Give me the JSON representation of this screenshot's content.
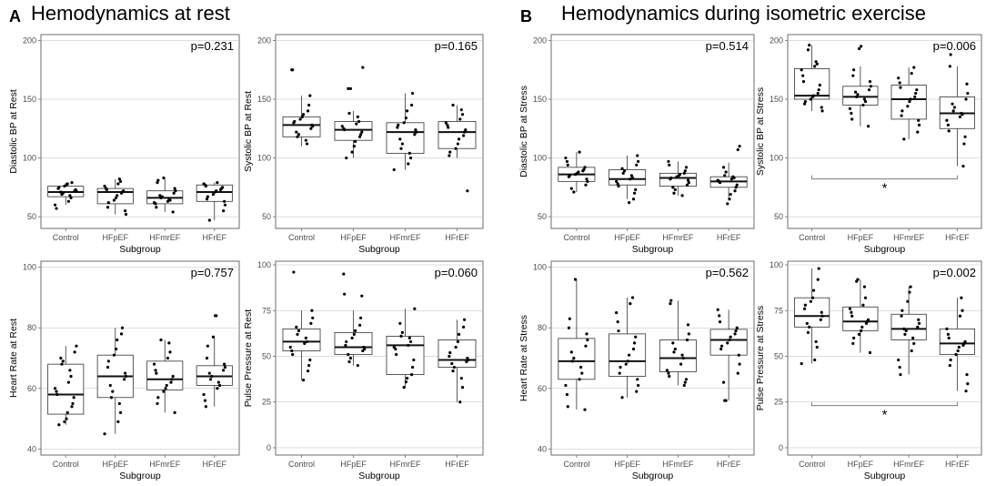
{
  "figure": {
    "panel_a": {
      "letter": "A",
      "title": "Hemodynamics at rest"
    },
    "panel_b": {
      "letter": "B",
      "title": "Hemodynamics during isometric exercise"
    }
  },
  "chart_data": [
    {
      "id": "dbp_rest",
      "type": "boxplot",
      "ylabel": "Diastolic BP at Rest",
      "xlabel": "Subgroup",
      "categories": [
        "Control",
        "HFpEF",
        "HFmrEF",
        "HFrEF"
      ],
      "ylim": [
        40,
        205
      ],
      "yticks": [
        50,
        100,
        150,
        200
      ],
      "pvalue": "p=0.231",
      "boxes": [
        {
          "q1": 67,
          "median": 71,
          "q3": 76,
          "lo": 60,
          "hi": 79
        },
        {
          "q1": 61,
          "median": 71,
          "q3": 74,
          "lo": 52,
          "hi": 82
        },
        {
          "q1": 61,
          "median": 66,
          "q3": 72,
          "lo": 54,
          "hi": 83
        },
        {
          "q1": 63,
          "median": 71,
          "q3": 77,
          "lo": 47,
          "hi": 79
        }
      ],
      "points": [
        [
          57,
          60,
          63,
          66,
          68,
          69,
          70,
          71,
          72,
          72,
          73,
          74,
          75,
          76,
          77,
          78,
          79
        ],
        [
          52,
          55,
          58,
          62,
          64,
          66,
          68,
          70,
          71,
          72,
          73,
          74,
          76,
          78,
          80,
          82
        ],
        [
          54,
          58,
          61,
          62,
          63,
          64,
          65,
          66,
          67,
          68,
          70,
          72,
          74,
          79,
          81,
          83
        ],
        [
          47,
          55,
          60,
          63,
          65,
          67,
          69,
          71,
          72,
          73,
          74,
          75,
          76,
          77,
          78,
          79
        ]
      ]
    },
    {
      "id": "sbp_rest",
      "type": "boxplot",
      "ylabel": "Systolic BP at Rest",
      "xlabel": "Subgroup",
      "categories": [
        "Control",
        "HFpEF",
        "HFmrEF",
        "HFrEF"
      ],
      "ylim": [
        40,
        205
      ],
      "yticks": [
        50,
        100,
        150,
        200
      ],
      "pvalue": "p=0.165",
      "boxes": [
        {
          "q1": 118,
          "median": 128,
          "q3": 135,
          "lo": 110,
          "hi": 153
        },
        {
          "q1": 115,
          "median": 124,
          "q3": 131,
          "lo": 100,
          "hi": 140
        },
        {
          "q1": 104,
          "median": 122,
          "q3": 130,
          "lo": 90,
          "hi": 155
        },
        {
          "q1": 108,
          "median": 122,
          "q3": 131,
          "lo": 100,
          "hi": 145
        }
      ],
      "points": [
        [
          112,
          115,
          118,
          120,
          122,
          125,
          127,
          128,
          130,
          131,
          133,
          135,
          137,
          140,
          145,
          153,
          175,
          175
        ],
        [
          100,
          105,
          110,
          114,
          118,
          120,
          122,
          124,
          125,
          127,
          129,
          131,
          135,
          138,
          159,
          159,
          177
        ],
        [
          90,
          95,
          100,
          104,
          108,
          112,
          116,
          120,
          122,
          124,
          126,
          128,
          130,
          134,
          140,
          145,
          155
        ],
        [
          72,
          102,
          105,
          108,
          112,
          116,
          119,
          122,
          124,
          126,
          128,
          130,
          133,
          137,
          141,
          145
        ]
      ]
    },
    {
      "id": "dbp_stress",
      "type": "boxplot",
      "ylabel": "Diastolic BP at Stress",
      "xlabel": "Subgroup",
      "categories": [
        "Control",
        "HFpEF",
        "HFmrEF",
        "HFrEF"
      ],
      "ylim": [
        40,
        205
      ],
      "yticks": [
        50,
        100,
        150,
        200
      ],
      "pvalue": "p=0.514",
      "boxes": [
        {
          "q1": 80,
          "median": 86,
          "q3": 92,
          "lo": 71,
          "hi": 105
        },
        {
          "q1": 77,
          "median": 82,
          "q3": 90,
          "lo": 65,
          "hi": 102
        },
        {
          "q1": 76,
          "median": 83,
          "q3": 87,
          "lo": 68,
          "hi": 97
        },
        {
          "q1": 75,
          "median": 80,
          "q3": 84,
          "lo": 65,
          "hi": 96
        }
      ],
      "points": [
        [
          71,
          74,
          77,
          80,
          82,
          84,
          85,
          86,
          87,
          88,
          89,
          90,
          92,
          94,
          97,
          100,
          105
        ],
        [
          62,
          65,
          70,
          73,
          76,
          78,
          80,
          82,
          83,
          85,
          87,
          89,
          91,
          94,
          97,
          102
        ],
        [
          68,
          70,
          73,
          75,
          77,
          79,
          81,
          82,
          83,
          84,
          85,
          86,
          87,
          89,
          92,
          94,
          97
        ],
        [
          61,
          65,
          69,
          72,
          75,
          77,
          79,
          80,
          81,
          82,
          83,
          84,
          85,
          88,
          92,
          107,
          110
        ]
      ]
    },
    {
      "id": "sbp_stress",
      "type": "boxplot",
      "ylabel": "Systolic BP at Stress",
      "xlabel": "Subgroup",
      "categories": [
        "Control",
        "HFpEF",
        "HFmrEF",
        "HFrEF"
      ],
      "ylim": [
        40,
        205
      ],
      "yticks": [
        50,
        100,
        150,
        200
      ],
      "pvalue": "p=0.006",
      "significance": "*",
      "boxes": [
        {
          "q1": 150,
          "median": 153,
          "q3": 176,
          "lo": 140,
          "hi": 196
        },
        {
          "q1": 145,
          "median": 152,
          "q3": 161,
          "lo": 127,
          "hi": 178
        },
        {
          "q1": 133,
          "median": 150,
          "q3": 162,
          "lo": 116,
          "hi": 177
        },
        {
          "q1": 125,
          "median": 138,
          "q3": 152,
          "lo": 93,
          "hi": 178
        }
      ],
      "points": [
        [
          140,
          143,
          146,
          148,
          150,
          152,
          153,
          155,
          158,
          162,
          165,
          170,
          175,
          178,
          180,
          182,
          192,
          196
        ],
        [
          127,
          133,
          138,
          142,
          145,
          148,
          150,
          152,
          154,
          156,
          158,
          161,
          165,
          170,
          175,
          193,
          195
        ],
        [
          116,
          122,
          128,
          132,
          136,
          140,
          144,
          148,
          150,
          152,
          155,
          158,
          160,
          164,
          168,
          172,
          177
        ],
        [
          93,
          112,
          118,
          123,
          128,
          132,
          135,
          137,
          138,
          140,
          143,
          146,
          150,
          155,
          163,
          178,
          188
        ]
      ]
    },
    {
      "id": "hr_rest",
      "type": "boxplot",
      "ylabel": "Heart Rate at Rest",
      "xlabel": "Subgroup",
      "categories": [
        "Control",
        "HFpEF",
        "HFmrEF",
        "HFrEF"
      ],
      "ylim": [
        38,
        102
      ],
      "yticks": [
        40,
        60,
        80,
        100
      ],
      "pvalue": "p=0.757",
      "boxes": [
        {
          "q1": 51.5,
          "median": 58,
          "q3": 68,
          "lo": 48,
          "hi": 74
        },
        {
          "q1": 57,
          "median": 64,
          "q3": 71,
          "lo": 45,
          "hi": 80
        },
        {
          "q1": 59.5,
          "median": 63,
          "q3": 69,
          "lo": 52,
          "hi": 76
        },
        {
          "q1": 61,
          "median": 64,
          "q3": 67.5,
          "lo": 54,
          "hi": 77
        }
      ],
      "points": [
        [
          48,
          49,
          50,
          52,
          54,
          55,
          57,
          58,
          59,
          60,
          62,
          64,
          66,
          68,
          69,
          70,
          72,
          74
        ],
        [
          45,
          49,
          52,
          55,
          57,
          59,
          61,
          63,
          64,
          65,
          67,
          69,
          71,
          73,
          76,
          78,
          80
        ],
        [
          52,
          55,
          57,
          59,
          60,
          61,
          62,
          63,
          64,
          65,
          66,
          68,
          70,
          72,
          75,
          76
        ],
        [
          54,
          56,
          58,
          60,
          61,
          62,
          63,
          64,
          65,
          66,
          67,
          68,
          70,
          74,
          77,
          84,
          84
        ]
      ]
    },
    {
      "id": "pp_rest",
      "type": "boxplot",
      "ylabel": "Pulse Pressure at Rest",
      "xlabel": "Subgroup",
      "categories": [
        "Control",
        "HFpEF",
        "HFmrEF",
        "HFrEF"
      ],
      "ylim": [
        -4,
        102
      ],
      "yticks": [
        0,
        25,
        50,
        75,
        100
      ],
      "pvalue": "p=0.060",
      "boxes": [
        {
          "q1": 53,
          "median": 58,
          "q3": 65,
          "lo": 37,
          "hi": 75
        },
        {
          "q1": 51,
          "median": 55,
          "q3": 63,
          "lo": 45,
          "hi": 75
        },
        {
          "q1": 40,
          "median": 56,
          "q3": 61,
          "lo": 33,
          "hi": 76
        },
        {
          "q1": 44,
          "median": 48,
          "q3": 59,
          "lo": 25,
          "hi": 70
        }
      ],
      "points": [
        [
          37,
          42,
          45,
          48,
          51,
          53,
          55,
          57,
          58,
          60,
          62,
          64,
          66,
          68,
          71,
          75,
          96
        ],
        [
          45,
          47,
          49,
          51,
          53,
          54,
          55,
          56,
          58,
          60,
          62,
          64,
          67,
          71,
          83,
          84,
          95
        ],
        [
          33,
          36,
          38,
          40,
          44,
          48,
          51,
          54,
          55,
          56,
          58,
          60,
          61,
          63,
          68,
          76
        ],
        [
          25,
          33,
          38,
          42,
          44,
          46,
          47,
          48,
          49,
          50,
          52,
          55,
          58,
          62,
          66,
          70
        ]
      ]
    },
    {
      "id": "hr_stress",
      "type": "boxplot",
      "ylabel": "Heart Rate at Stress",
      "xlabel": "Subgroup",
      "categories": [
        "Control",
        "HFpEF",
        "HFmrEF",
        "HFrEF"
      ],
      "ylim": [
        38,
        102
      ],
      "yticks": [
        40,
        60,
        80,
        100
      ],
      "pvalue": "p=0.562",
      "boxes": [
        {
          "q1": 63,
          "median": 69,
          "q3": 76.5,
          "lo": 53,
          "hi": 96
        },
        {
          "q1": 64,
          "median": 69,
          "q3": 78,
          "lo": 57,
          "hi": 90
        },
        {
          "q1": 65.5,
          "median": 70,
          "q3": 76,
          "lo": 61,
          "hi": 89
        },
        {
          "q1": 71,
          "median": 76,
          "q3": 79.5,
          "lo": 56,
          "hi": 86
        }
      ],
      "points": [
        [
          53,
          54,
          58,
          61,
          63,
          65,
          67,
          69,
          70,
          72,
          74,
          76,
          78,
          80,
          83,
          96
        ],
        [
          57,
          59,
          61,
          63,
          65,
          67,
          68,
          69,
          71,
          73,
          75,
          77,
          79,
          82,
          85,
          88,
          90
        ],
        [
          61,
          62,
          63,
          64,
          65,
          66,
          68,
          70,
          71,
          72,
          73,
          75,
          76,
          78,
          81,
          88,
          89
        ],
        [
          56,
          56,
          62,
          65,
          68,
          71,
          73,
          74,
          75,
          76,
          77,
          78,
          79,
          80,
          82,
          84,
          86
        ]
      ]
    },
    {
      "id": "pp_stress",
      "type": "boxplot",
      "ylabel": "Pulse Pressure at Stress",
      "xlabel": "Subgroup",
      "categories": [
        "Control",
        "HFpEF",
        "HFmrEF",
        "HFrEF"
      ],
      "ylim": [
        -4,
        102
      ],
      "yticks": [
        0,
        25,
        50,
        75,
        100
      ],
      "pvalue": "p=0.002",
      "significance": "*",
      "boxes": [
        {
          "q1": 66,
          "median": 72,
          "q3": 82,
          "lo": 46,
          "hi": 98
        },
        {
          "q1": 64,
          "median": 69,
          "q3": 77,
          "lo": 52,
          "hi": 92
        },
        {
          "q1": 59,
          "median": 65,
          "q3": 73,
          "lo": 40,
          "hi": 88
        },
        {
          "q1": 51,
          "median": 57,
          "q3": 65,
          "lo": 31,
          "hi": 82
        }
      ],
      "points": [
        [
          46,
          48,
          55,
          58,
          63,
          66,
          68,
          70,
          72,
          74,
          76,
          78,
          80,
          82,
          86,
          92,
          98
        ],
        [
          52,
          57,
          60,
          62,
          64,
          66,
          68,
          69,
          70,
          72,
          74,
          76,
          78,
          82,
          88,
          91,
          92
        ],
        [
          40,
          44,
          48,
          53,
          57,
          60,
          62,
          64,
          65,
          66,
          68,
          70,
          72,
          75,
          80,
          85,
          88
        ],
        [
          31,
          35,
          40,
          45,
          48,
          51,
          53,
          55,
          56,
          57,
          58,
          60,
          62,
          65,
          72,
          75,
          82
        ]
      ]
    }
  ]
}
